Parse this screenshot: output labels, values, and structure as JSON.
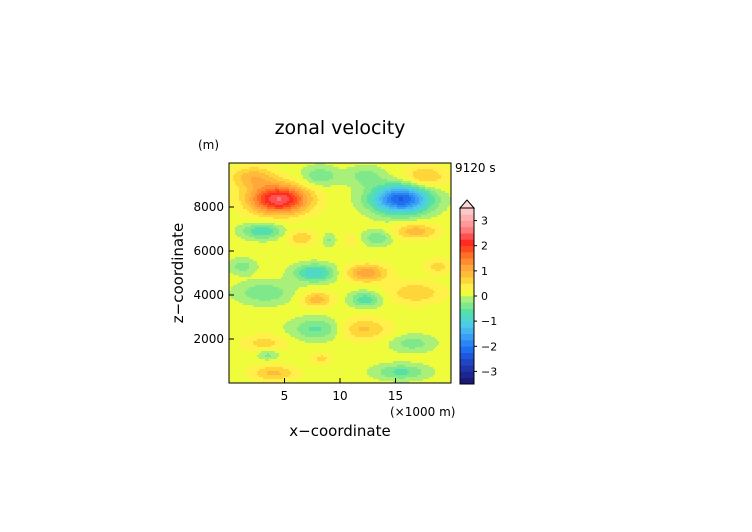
{
  "chart_data": {
    "type": "heatmap",
    "title": "zonal velocity",
    "xlabel": "x−coordinate",
    "ylabel": "z−coordinate",
    "x_unit": "(×1000 m)",
    "y_unit": "(m)",
    "time_label": "9120 s",
    "xlim": [
      0,
      20
    ],
    "ylim": [
      0,
      10000
    ],
    "x_ticks": [
      5,
      10,
      15
    ],
    "x_tick_labels": [
      "5",
      "10",
      "15"
    ],
    "y_ticks": [
      2000,
      4000,
      6000,
      8000
    ],
    "y_tick_labels": [
      "2000",
      "4000",
      "6000",
      "8000"
    ],
    "colorbar": {
      "levels": [
        -3.5,
        -3.25,
        -3,
        -2.75,
        -2.5,
        -2.25,
        -2,
        -1.75,
        -1.5,
        -1.25,
        -1,
        -0.75,
        -0.5,
        -0.25,
        0,
        0.25,
        0.5,
        0.75,
        1,
        1.25,
        1.5,
        1.75,
        2,
        2.25,
        2.5,
        2.75,
        3,
        3.25,
        3.5
      ],
      "tick_values": [
        -3,
        -2,
        -1,
        0,
        1,
        2,
        3
      ],
      "tick_labels": [
        "−3",
        "−2",
        "−1",
        "0",
        "1",
        "2",
        "3"
      ],
      "extend": "max",
      "colors": [
        "#1a1a78",
        "#1c2590",
        "#1f34a8",
        "#1f44c4",
        "#1e57dc",
        "#1e6ef0",
        "#2a86f5",
        "#3a9ef5",
        "#45b6f0",
        "#4ecbe8",
        "#4fd8c8",
        "#55e0a8",
        "#7ee88a",
        "#a8f07a",
        "#eefc3c",
        "#fff04a",
        "#ffd63a",
        "#ffbc3a",
        "#ffa73a",
        "#ff8c2e",
        "#ff6e26",
        "#ff4a1e",
        "#ff2a20",
        "#ff5050",
        "#ff7a7a",
        "#ff9999",
        "#ffb0b0",
        "#ffc8c8"
      ],
      "triangle_color": "#ffd6d6"
    },
    "features": [
      {
        "x": 4.5,
        "z": 8350,
        "sx": 2.6,
        "sz": 650,
        "value": 2.4
      },
      {
        "x": 15.5,
        "z": 8350,
        "sx": 2.6,
        "sz": 650,
        "value": -2.4
      },
      {
        "x": 2.2,
        "z": 9350,
        "sx": 2.0,
        "sz": 500,
        "value": 0.8
      },
      {
        "x": 17.6,
        "z": 9350,
        "sx": 2.0,
        "sz": 500,
        "value": 0.7
      },
      {
        "x": 8.2,
        "z": 9400,
        "sx": 1.6,
        "sz": 450,
        "value": -0.6
      },
      {
        "x": 12.3,
        "z": 9400,
        "sx": 1.6,
        "sz": 450,
        "value": -0.5
      },
      {
        "x": 3.0,
        "z": 6900,
        "sx": 1.8,
        "sz": 350,
        "value": -0.9
      },
      {
        "x": 16.8,
        "z": 6900,
        "sx": 2.0,
        "sz": 350,
        "value": 0.8
      },
      {
        "x": 6.5,
        "z": 6600,
        "sx": 1.3,
        "sz": 350,
        "value": 0.6
      },
      {
        "x": 13.4,
        "z": 6600,
        "sx": 1.3,
        "sz": 350,
        "value": -0.6
      },
      {
        "x": 9.0,
        "z": 6500,
        "sx": 0.6,
        "sz": 300,
        "value": -0.4
      },
      {
        "x": 11.0,
        "z": 6500,
        "sx": 0.6,
        "sz": 300,
        "value": 0.4
      },
      {
        "x": 1.2,
        "z": 5300,
        "sx": 1.2,
        "sz": 350,
        "value": -0.5
      },
      {
        "x": 18.8,
        "z": 5300,
        "sx": 1.2,
        "sz": 350,
        "value": 0.5
      },
      {
        "x": 7.7,
        "z": 5000,
        "sx": 1.8,
        "sz": 400,
        "value": -1.1
      },
      {
        "x": 12.4,
        "z": 5000,
        "sx": 1.8,
        "sz": 400,
        "value": 1.1
      },
      {
        "x": 3.2,
        "z": 4100,
        "sx": 2.5,
        "sz": 500,
        "value": -0.6
      },
      {
        "x": 16.8,
        "z": 4100,
        "sx": 2.5,
        "sz": 500,
        "value": 0.6
      },
      {
        "x": 7.9,
        "z": 3800,
        "sx": 1.4,
        "sz": 350,
        "value": 0.8
      },
      {
        "x": 12.3,
        "z": 3800,
        "sx": 1.4,
        "sz": 350,
        "value": -0.8
      },
      {
        "x": 8.0,
        "z": 2450,
        "sx": 2.4,
        "sz": 500,
        "value": -0.7
      },
      {
        "x": 12.0,
        "z": 2450,
        "sx": 2.4,
        "sz": 500,
        "value": 0.7
      },
      {
        "x": 3.2,
        "z": 1800,
        "sx": 2.0,
        "sz": 400,
        "value": 0.5
      },
      {
        "x": 16.5,
        "z": 1800,
        "sx": 2.0,
        "sz": 400,
        "value": -0.5
      },
      {
        "x": 4.0,
        "z": 450,
        "sx": 2.0,
        "sz": 350,
        "value": 0.7
      },
      {
        "x": 15.5,
        "z": 500,
        "sx": 2.3,
        "sz": 350,
        "value": -0.7
      },
      {
        "x": 3.5,
        "z": 1300,
        "sx": 1.0,
        "sz": 250,
        "value": -0.5
      },
      {
        "x": 8.3,
        "z": 1100,
        "sx": 0.9,
        "sz": 250,
        "value": 0.5
      }
    ]
  }
}
